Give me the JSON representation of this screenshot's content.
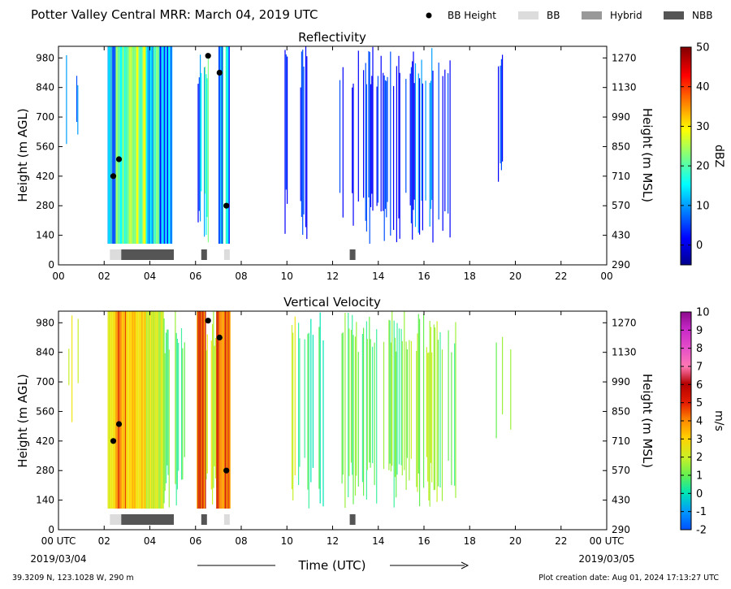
{
  "header": {
    "title": "Potter Valley Central MRR:  March 04, 2019 UTC",
    "legend": [
      {
        "label": "BB Height",
        "kind": "dot",
        "color": "#000000"
      },
      {
        "label": "BB",
        "kind": "box",
        "color": "#dcdcdc"
      },
      {
        "label": "Hybrid",
        "kind": "box",
        "color": "#999999"
      },
      {
        "label": "NBB",
        "kind": "box",
        "color": "#555555"
      }
    ]
  },
  "footer": {
    "location": "39.3209 N, 123.1028 W, 290 m",
    "created": "Plot creation date: Aug 01, 2024 17:13:27 UTC",
    "xlabel": "Time (UTC)",
    "start_date": "2019/03/04",
    "end_date": "2019/03/05"
  },
  "chart_data": [
    {
      "type": "heatmap",
      "title": "Reflectivity",
      "ylabel": "Height (m AGL)",
      "ylabel_right": "Height (m MSL)",
      "x_ticks": [
        "00",
        "02",
        "04",
        "06",
        "08",
        "10",
        "12",
        "14",
        "16",
        "18",
        "20",
        "22",
        "00"
      ],
      "y_ticks": [
        0,
        140,
        280,
        420,
        560,
        700,
        840,
        980
      ],
      "y_ticks_right": [
        290,
        430,
        570,
        710,
        850,
        990,
        1130,
        1270
      ],
      "xlim": [
        0,
        24
      ],
      "ylim": [
        0,
        1035
      ],
      "colorbar": {
        "label": "dBZ",
        "range": [
          -5,
          50
        ],
        "ticks": [
          0,
          10,
          20,
          30,
          40,
          50
        ],
        "colormap": "jet"
      },
      "bb_height_points": [
        {
          "time": 2.4,
          "height": 420
        },
        {
          "time": 2.65,
          "height": 500
        },
        {
          "time": 6.55,
          "height": 990
        },
        {
          "time": 7.05,
          "height": 910
        },
        {
          "time": 7.35,
          "height": 280
        }
      ],
      "bb_type_segments": [
        {
          "start": 2.25,
          "end": 2.75,
          "type": "BB"
        },
        {
          "start": 2.75,
          "end": 5.05,
          "type": "NBB"
        },
        {
          "start": 6.25,
          "end": 6.5,
          "type": "NBB"
        },
        {
          "start": 7.25,
          "end": 7.5,
          "type": "BB"
        },
        {
          "start": 12.75,
          "end": 13.0,
          "type": "NBB"
        }
      ]
    },
    {
      "type": "heatmap",
      "title": "Vertical Velocity",
      "ylabel": "Height (m AGL)",
      "ylabel_right": "Height (m MSL)",
      "x_ticks": [
        "00 UTC",
        "02",
        "04",
        "06",
        "08",
        "10",
        "12",
        "14",
        "16",
        "18",
        "20",
        "22",
        "00 UTC"
      ],
      "y_ticks": [
        0,
        140,
        280,
        420,
        560,
        700,
        840,
        980
      ],
      "y_ticks_right": [
        290,
        430,
        570,
        710,
        850,
        990,
        1130,
        1270
      ],
      "xlim": [
        0,
        24
      ],
      "ylim": [
        0,
        1035
      ],
      "colorbar": {
        "label": "m/s",
        "range": [
          -2,
          10
        ],
        "ticks": [
          -2,
          -1,
          0,
          1,
          2,
          3,
          4,
          5,
          6,
          7,
          8,
          9,
          10
        ],
        "colormap": "velocity"
      },
      "bb_height_points": [
        {
          "time": 2.4,
          "height": 420
        },
        {
          "time": 2.65,
          "height": 500
        },
        {
          "time": 6.55,
          "height": 990
        },
        {
          "time": 7.05,
          "height": 910
        },
        {
          "time": 7.35,
          "height": 280
        }
      ],
      "bb_type_segments": [
        {
          "start": 2.25,
          "end": 2.75,
          "type": "BB"
        },
        {
          "start": 2.75,
          "end": 5.05,
          "type": "NBB"
        },
        {
          "start": 6.25,
          "end": 6.5,
          "type": "NBB"
        },
        {
          "start": 7.25,
          "end": 7.5,
          "type": "BB"
        },
        {
          "start": 12.75,
          "end": 13.0,
          "type": "NBB"
        }
      ]
    }
  ]
}
